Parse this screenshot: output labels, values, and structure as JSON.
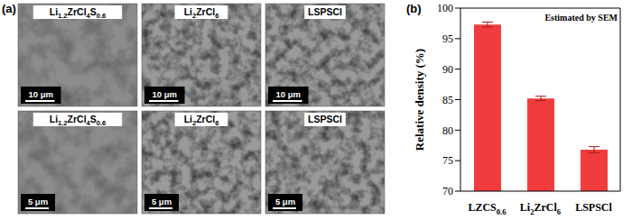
{
  "panels": {
    "a": {
      "label": "(a)",
      "images": [
        {
          "label": "Li1.2ZrCl4S0.6",
          "scale_bar": "10 μm"
        },
        {
          "label": "Li2ZrCl6",
          "scale_bar": "10 μm"
        },
        {
          "label": "LSPSCl",
          "scale_bar": "10 μm"
        },
        {
          "label": "Li1.2ZrCl4S0.6",
          "scale_bar": "5 μm"
        },
        {
          "label": "Li2ZrCl6",
          "scale_bar": "5 μm"
        },
        {
          "label": "LSPSCl",
          "scale_bar": "5 μm"
        }
      ]
    }
  },
  "chart_data": {
    "type": "bar",
    "title": "(b)",
    "annotation": "Estimated by SEM",
    "y_label": "Relative density (%)",
    "categories": [
      "LZCS0.6",
      "Li2ZrCl6",
      "LSPSCl"
    ],
    "values": [
      97.3,
      85.2,
      76.8
    ],
    "errors": [
      0.4,
      0.35,
      0.5
    ],
    "color": "#f03c3c",
    "ylim": [
      70,
      100
    ],
    "yticks": [
      70,
      75,
      80,
      85,
      90,
      95,
      100
    ]
  }
}
